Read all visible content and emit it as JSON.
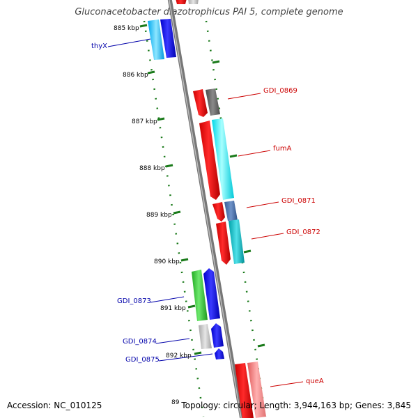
{
  "title": "Gluconacetobacter diazotrophicus PAI 5, complete genome",
  "footer": {
    "accession": "Accession: NC_010125",
    "stats": "Topology: circular; Length: 3,944,163 bp; Genes: 3,845"
  },
  "kbp_ticks": [
    "885 kbp",
    "886 kbp",
    "887 kbp",
    "888 kbp",
    "889 kbp",
    "890 kbp",
    "891 kbp",
    "892 kbp",
    "89"
  ],
  "genes": {
    "thyX": "thyX",
    "gdi0869": "GDI_0869",
    "fumA": "fumA",
    "gdi0871": "GDI_0871",
    "gdi0872": "GDI_0872",
    "gdi0873": "GDI_0873",
    "gdi0874": "GDI_0874",
    "gdi0875": "GDI_0875",
    "queA": "queA"
  },
  "colors": {
    "forward_label": "#cc0000",
    "reverse_label": "#0000aa",
    "backbone": "#808080",
    "tick": "#1a7a1a"
  }
}
